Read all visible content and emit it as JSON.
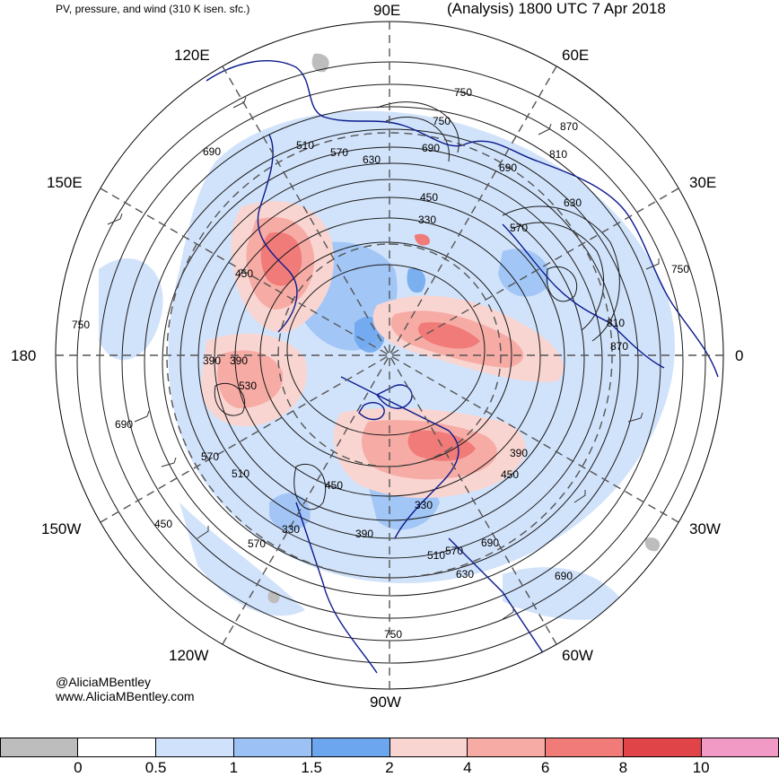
{
  "header": {
    "left_title": "PV, pressure, and wind (310 K isen. sfc.)",
    "right_title": "(Analysis) 1800 UTC 7 Apr 2018"
  },
  "longitude_labels": {
    "n90e": "90E",
    "e60e": "60E",
    "e30e": "30E",
    "e0": "0",
    "w30w": "30W",
    "w60w": "60W",
    "s90w": "90W",
    "w120w": "120W",
    "w150w": "150W",
    "w180": "180",
    "e150e": "150E",
    "e120e": "120E"
  },
  "contour_labels": [
    "690",
    "750",
    "510",
    "570",
    "630",
    "690",
    "750",
    "870",
    "810",
    "690",
    "630",
    "450",
    "330",
    "570",
    "750",
    "810",
    "870",
    "450",
    "390",
    "330",
    "390",
    "450",
    "510",
    "570",
    "630",
    "690",
    "750",
    "570",
    "510",
    "450",
    "390",
    "330",
    "390",
    "530",
    "690",
    "750",
    "450",
    "570",
    "690"
  ],
  "credit": {
    "handle": "@AliciaMBentley",
    "site": "www.AliciaMBentley.com"
  },
  "colorbar": {
    "colors": [
      "#bdbdbd",
      "#ffffff",
      "#cfe1fb",
      "#9cc2f5",
      "#6ba6ef",
      "#f9d5d1",
      "#f7aba5",
      "#f07b78",
      "#e04348",
      "#f29ac6"
    ],
    "ticks": [
      "0",
      "0.5",
      "1",
      "1.5",
      "2",
      "4",
      "6",
      "8",
      "10"
    ]
  },
  "map_colors": {
    "coast": "#0b1a8c",
    "contour": "#1a1a1a",
    "grid": "#555555",
    "pv_light_blue": "#cfe1fb",
    "pv_mid_blue": "#9cc2f5",
    "pv_dark_blue": "#6ba6ef",
    "pv_light_red": "#f9d5d1",
    "pv_mid_red": "#f7aba5",
    "pv_red": "#f07b78"
  }
}
